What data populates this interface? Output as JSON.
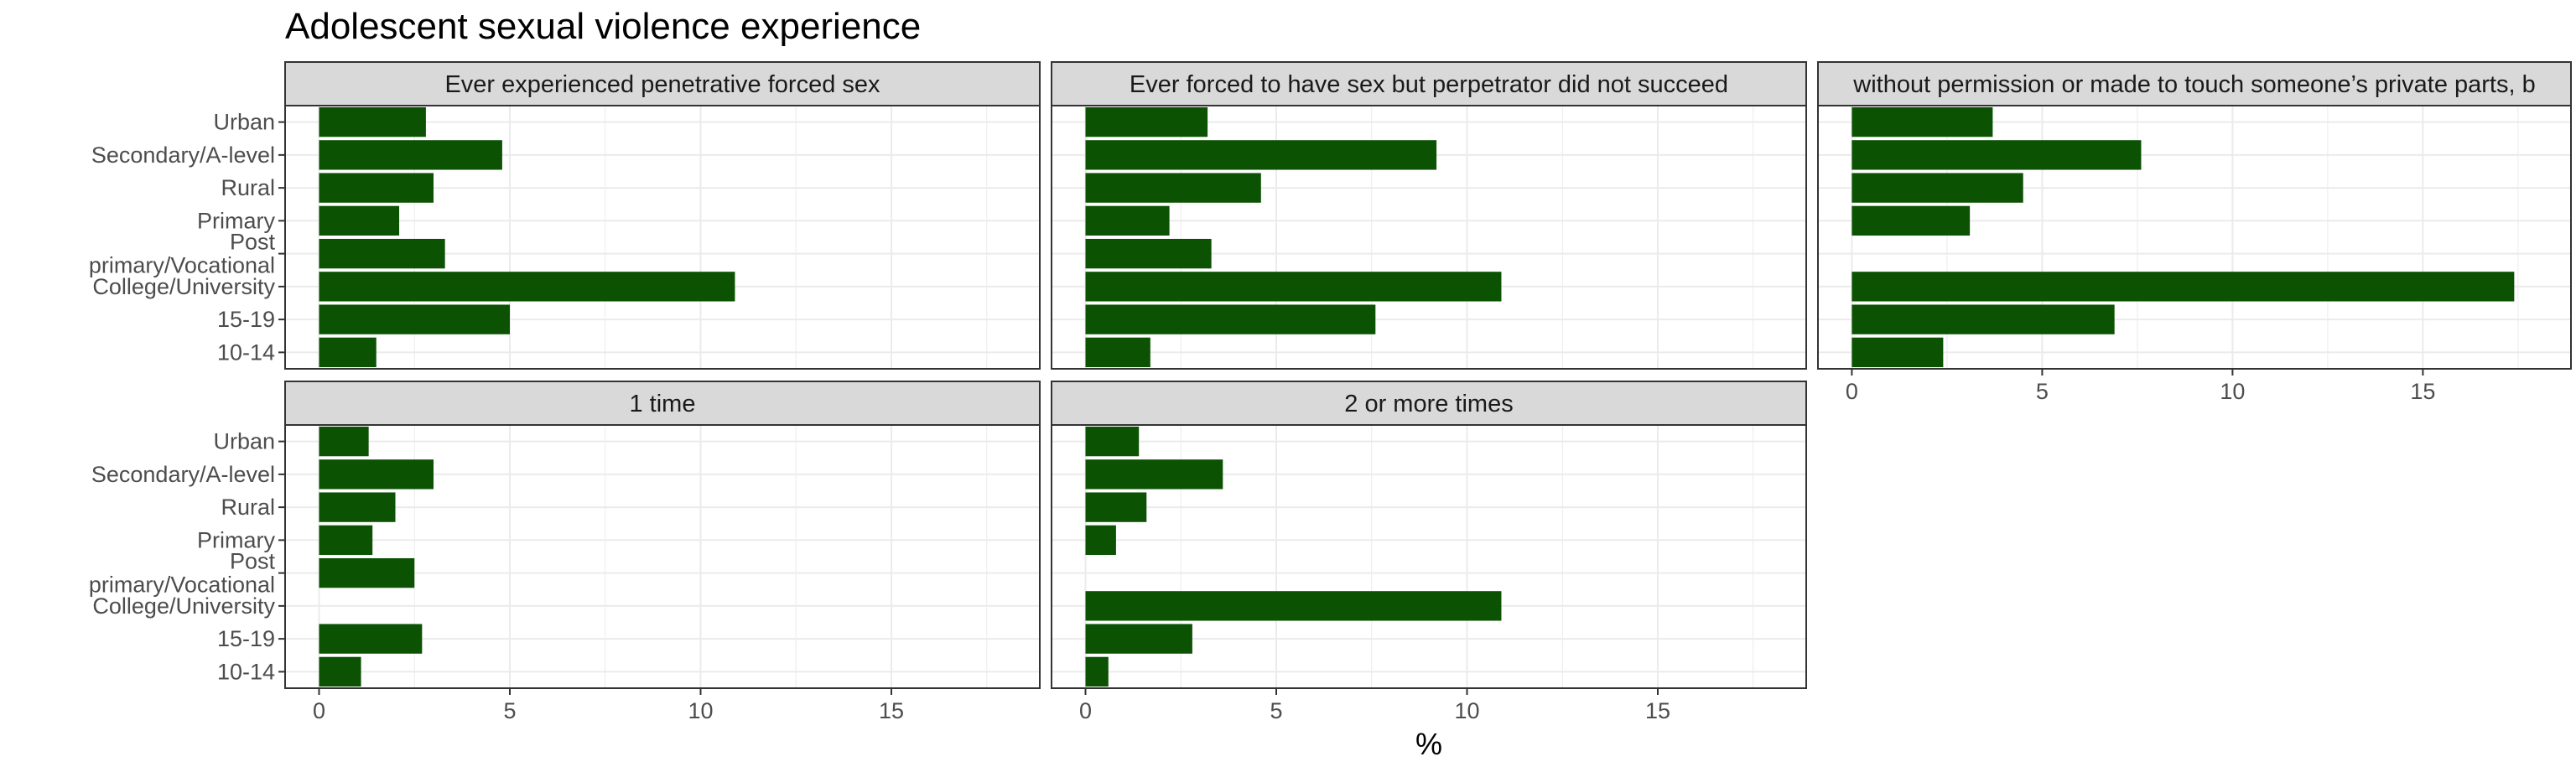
{
  "chart_data": {
    "type": "bar",
    "orientation": "horizontal",
    "title": "Adolescent sexual violence experience",
    "xlabel": "%",
    "ylabel": "",
    "xlim": [
      0,
      18
    ],
    "x_ticks": [
      0,
      5,
      10,
      15
    ],
    "grid": true,
    "bar_color": "#0b5203",
    "categories": [
      "Urban",
      "Secondary/A-level",
      "Rural",
      "Primary",
      "Post\nprimary/Vocational",
      "College/University",
      "15-19",
      "10-14"
    ],
    "panels": [
      {
        "title": "Ever experienced penetrative forced sex",
        "values": [
          2.8,
          4.8,
          3.0,
          2.1,
          3.3,
          10.9,
          5.0,
          1.5
        ]
      },
      {
        "title": "Ever forced to have sex but perpetrator did not succeed",
        "values": [
          3.2,
          9.2,
          4.6,
          2.2,
          3.3,
          10.9,
          7.6,
          1.7
        ]
      },
      {
        "title": "without permission or made to touch someone’s private parts, b",
        "values": [
          3.7,
          7.6,
          4.5,
          3.1,
          null,
          17.4,
          6.9,
          2.4
        ]
      },
      {
        "title": "1 time",
        "values": [
          1.3,
          3.0,
          2.0,
          1.4,
          2.5,
          null,
          2.7,
          1.1
        ]
      },
      {
        "title": "2 or more times",
        "values": [
          1.4,
          3.6,
          1.6,
          0.8,
          null,
          10.9,
          2.8,
          0.6
        ]
      }
    ]
  }
}
